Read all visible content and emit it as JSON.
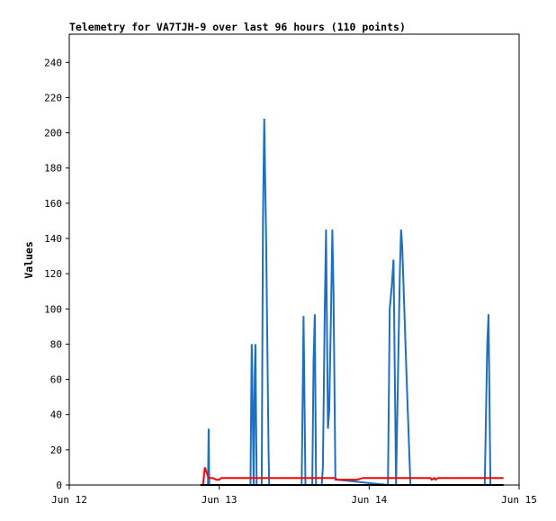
{
  "chart_data": {
    "type": "line",
    "title": "Telemetry for VA7TJH-9 over last 96 hours (110 points)",
    "ylabel": "Values",
    "xlabel": "",
    "x_axis": {
      "unit": "hours since Jun 12 00:00",
      "range": [
        0,
        72
      ],
      "ticks": [
        {
          "x": 0,
          "label": "Jun 12"
        },
        {
          "x": 24,
          "label": "Jun 13"
        },
        {
          "x": 48,
          "label": "Jun 14"
        },
        {
          "x": 72,
          "label": "Jun 15"
        }
      ]
    },
    "y_axis": {
      "range": [
        0,
        256
      ],
      "ticks": [
        0,
        20,
        40,
        60,
        80,
        100,
        120,
        140,
        160,
        180,
        200,
        220,
        240
      ]
    },
    "grid": false,
    "legend": "none",
    "series": [
      {
        "color": "#1f6fc0",
        "points": [
          [
            21.0,
            0
          ],
          [
            22.2,
            0
          ],
          [
            22.3,
            32
          ],
          [
            22.4,
            0
          ],
          [
            29.0,
            0
          ],
          [
            29.2,
            80
          ],
          [
            29.3,
            60
          ],
          [
            29.5,
            0
          ],
          [
            29.7,
            68
          ],
          [
            29.8,
            80
          ],
          [
            30.0,
            0
          ],
          [
            30.8,
            0
          ],
          [
            31.0,
            150
          ],
          [
            31.2,
            208
          ],
          [
            31.5,
            140
          ],
          [
            31.9,
            20
          ],
          [
            32.0,
            0
          ],
          [
            37.2,
            0
          ],
          [
            37.5,
            96
          ],
          [
            37.8,
            0
          ],
          [
            38.9,
            0
          ],
          [
            39.1,
            70
          ],
          [
            39.3,
            97
          ],
          [
            39.5,
            0
          ],
          [
            40.4,
            0
          ],
          [
            40.6,
            10
          ],
          [
            40.9,
            100
          ],
          [
            41.1,
            145
          ],
          [
            41.4,
            32
          ],
          [
            41.6,
            42
          ],
          [
            41.9,
            100
          ],
          [
            42.1,
            145
          ],
          [
            42.3,
            110
          ],
          [
            42.6,
            3
          ],
          [
            42.9,
            3
          ],
          [
            51.0,
            0
          ],
          [
            51.3,
            100
          ],
          [
            51.6,
            112
          ],
          [
            51.9,
            128
          ],
          [
            52.3,
            0
          ],
          [
            52.9,
            120
          ],
          [
            53.1,
            145
          ],
          [
            53.3,
            135
          ],
          [
            54.0,
            60
          ],
          [
            54.6,
            0
          ],
          [
            55.2,
            0
          ],
          [
            66.5,
            0
          ],
          [
            66.9,
            80
          ],
          [
            67.1,
            97
          ],
          [
            67.4,
            0
          ],
          [
            69.5,
            0
          ]
        ]
      },
      {
        "color": "#ff0000",
        "points": [
          [
            21.0,
            0
          ],
          [
            21.4,
            0
          ],
          [
            21.7,
            10
          ],
          [
            22.3,
            4
          ],
          [
            23.0,
            4
          ],
          [
            23.5,
            3
          ],
          [
            24.0,
            3
          ],
          [
            24.3,
            4
          ],
          [
            30.0,
            4
          ],
          [
            35.0,
            4
          ],
          [
            40.0,
            4
          ],
          [
            42.5,
            4
          ],
          [
            42.9,
            3
          ],
          [
            46.0,
            3
          ],
          [
            47.0,
            4
          ],
          [
            53.0,
            4
          ],
          [
            57.8,
            4
          ],
          [
            58.0,
            3
          ],
          [
            58.4,
            4
          ],
          [
            58.6,
            3
          ],
          [
            59.0,
            4
          ],
          [
            69.5,
            4
          ]
        ]
      },
      {
        "color": "#000000",
        "points": [
          [
            21.0,
            0
          ],
          [
            69.5,
            0
          ]
        ]
      }
    ]
  }
}
